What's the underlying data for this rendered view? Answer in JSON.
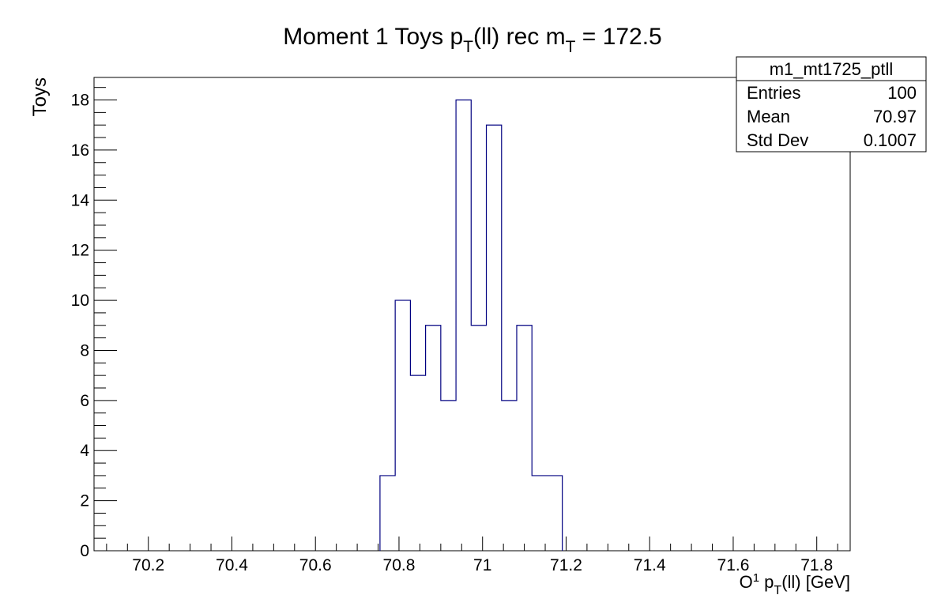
{
  "chart_data": {
    "type": "histogram",
    "title": {
      "prefix": "Moment 1 Toys  p",
      "sub1": "T",
      "mid": "(ll) rec  m",
      "sub2": "T",
      "suffix": " = 172.5"
    },
    "xlabel": {
      "pre": "O",
      "sup": "1",
      "mid": " p",
      "sub": "T",
      "post": "(ll) [GeV]"
    },
    "ylabel": "Toys",
    "xlim": [
      70.07,
      71.88
    ],
    "ylim": [
      0,
      18.9
    ],
    "bin_width": 0.03636,
    "bins": [
      {
        "x_low": 70.7545,
        "x_high": 70.7909,
        "count": 3
      },
      {
        "x_low": 70.7909,
        "x_high": 70.8273,
        "count": 10
      },
      {
        "x_low": 70.8273,
        "x_high": 70.8636,
        "count": 7
      },
      {
        "x_low": 70.8636,
        "x_high": 70.9,
        "count": 9
      },
      {
        "x_low": 70.9,
        "x_high": 70.9364,
        "count": 6
      },
      {
        "x_low": 70.9364,
        "x_high": 70.9727,
        "count": 18
      },
      {
        "x_low": 70.9727,
        "x_high": 71.0091,
        "count": 9
      },
      {
        "x_low": 71.0091,
        "x_high": 71.0455,
        "count": 17
      },
      {
        "x_low": 71.0455,
        "x_high": 71.0818,
        "count": 6
      },
      {
        "x_low": 71.0818,
        "x_high": 71.1182,
        "count": 9
      },
      {
        "x_low": 71.1182,
        "x_high": 71.1545,
        "count": 3
      },
      {
        "x_low": 71.1545,
        "x_high": 71.1909,
        "count": 3
      }
    ],
    "x_major_ticks": [
      {
        "value": 70.2,
        "label": "70.2"
      },
      {
        "value": 70.4,
        "label": "70.4"
      },
      {
        "value": 70.6,
        "label": "70.6"
      },
      {
        "value": 70.8,
        "label": "70.8"
      },
      {
        "value": 71.0,
        "label": "71"
      },
      {
        "value": 71.2,
        "label": "71.2"
      },
      {
        "value": 71.4,
        "label": "71.4"
      },
      {
        "value": 71.6,
        "label": "71.6"
      },
      {
        "value": 71.8,
        "label": "71.8"
      }
    ],
    "x_minor_step": 0.05,
    "y_major_ticks": [
      {
        "value": 0,
        "label": "0"
      },
      {
        "value": 2,
        "label": "2"
      },
      {
        "value": 4,
        "label": "4"
      },
      {
        "value": 6,
        "label": "6"
      },
      {
        "value": 8,
        "label": "8"
      },
      {
        "value": 10,
        "label": "10"
      },
      {
        "value": 12,
        "label": "12"
      },
      {
        "value": 14,
        "label": "14"
      },
      {
        "value": 16,
        "label": "16"
      },
      {
        "value": 18,
        "label": "18"
      }
    ],
    "y_minor_step": 0.5,
    "line_color": "#000080",
    "grid": false,
    "stats_box": {
      "name": "m1_mt1725_ptll",
      "rows": [
        {
          "label": "Entries",
          "value": "100"
        },
        {
          "label": "Mean",
          "value": "70.97"
        },
        {
          "label": "Std Dev",
          "value": "0.1007"
        }
      ],
      "placement": "top-right"
    }
  }
}
